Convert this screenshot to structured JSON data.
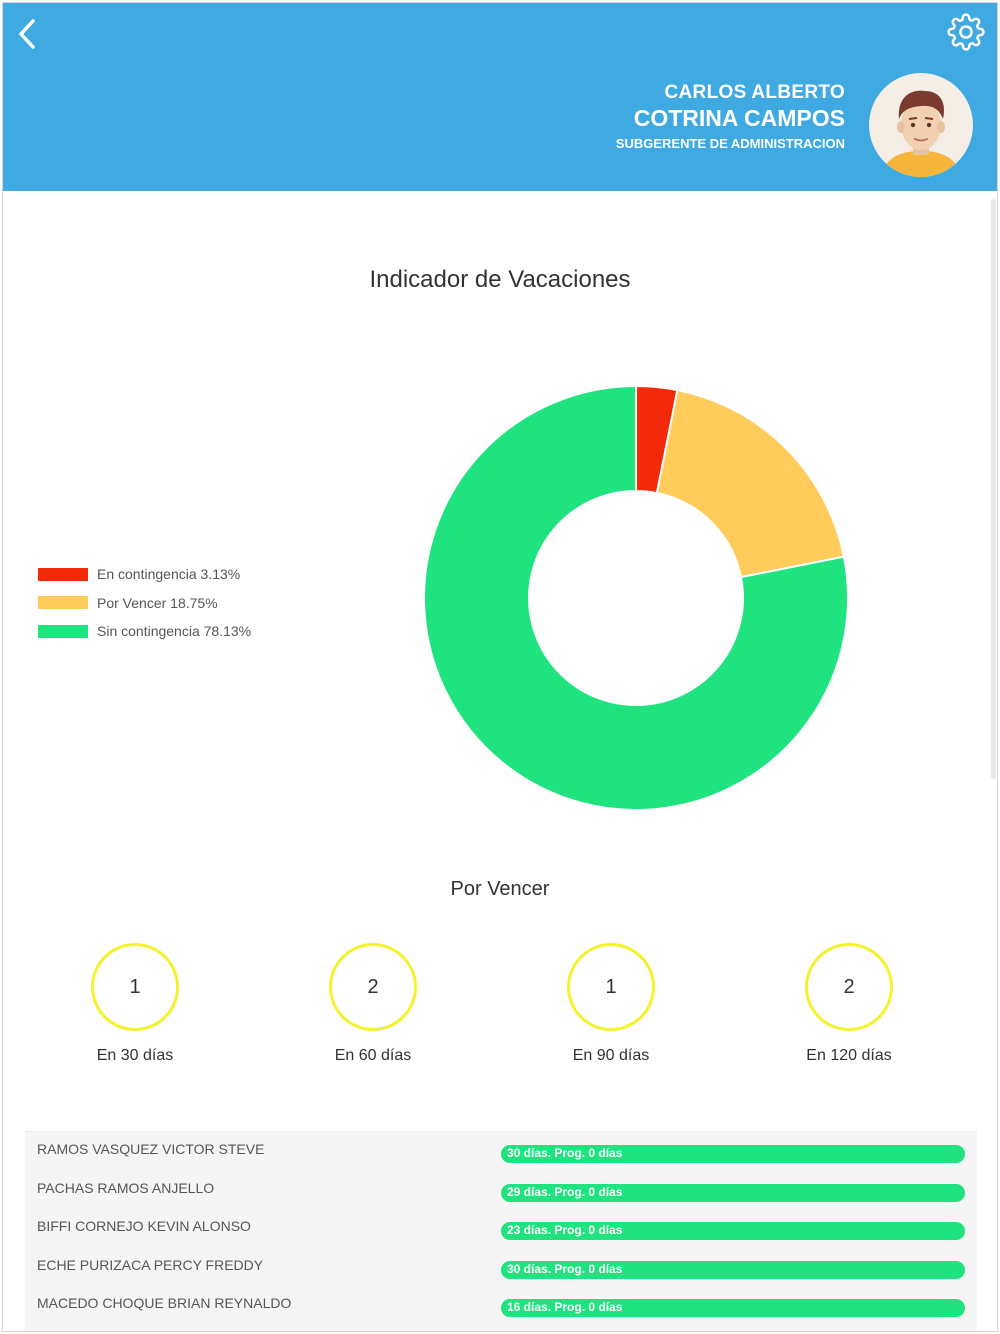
{
  "header": {
    "first_name": "CARLOS ALBERTO",
    "last_name": "COTRINA CAMPOS",
    "role": "SUBGERENTE DE ADMINISTRACION",
    "background": "#3FA9E2"
  },
  "chart_data": {
    "type": "pie",
    "variant": "donut",
    "title": "Indicador de Vacaciones",
    "legend_position": "left",
    "series": [
      {
        "name": "En contingencia",
        "label": "En contingencia 3.13%",
        "value": 3.13,
        "color": "#F22A0A"
      },
      {
        "name": "Por Vencer",
        "label": "Por Vencer 18.75%",
        "value": 18.75,
        "color": "#FFCC5B"
      },
      {
        "name": "Sin contingencia",
        "label": "Sin contingencia 78.13%",
        "value": 78.13,
        "color": "#1EE37E"
      }
    ]
  },
  "por_vencer": {
    "title": "Por Vencer",
    "buckets": [
      {
        "count": "1",
        "label": "En 30 días"
      },
      {
        "count": "2",
        "label": "En 60 días"
      },
      {
        "count": "1",
        "label": "En 90 días"
      },
      {
        "count": "2",
        "label": "En 120 días"
      }
    ]
  },
  "employees": [
    {
      "name": "RAMOS VASQUEZ VICTOR STEVE",
      "status": "30 días. Prog. 0 días"
    },
    {
      "name": "PACHAS RAMOS ANJELLO",
      "status": "29 días. Prog. 0 días"
    },
    {
      "name": "BIFFI CORNEJO KEVIN ALONSO",
      "status": "23 días. Prog. 0 días"
    },
    {
      "name": "ECHE PURIZACA PERCY FREDDY",
      "status": "30 días. Prog. 0 días"
    },
    {
      "name": "MACEDO CHOQUE BRIAN REYNALDO",
      "status": "16 días. Prog. 0 días"
    }
  ],
  "icons": {
    "back": "chevron-left-icon",
    "settings": "gear-icon",
    "avatar": "user-avatar"
  }
}
